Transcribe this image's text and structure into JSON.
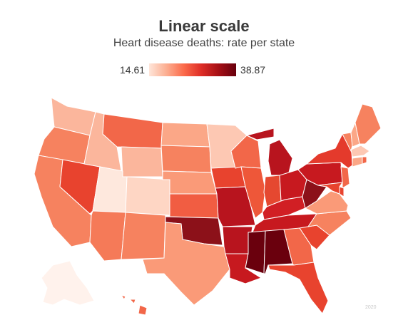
{
  "title": "Linear scale",
  "subtitle": "Heart disease deaths: rate per state",
  "legend": {
    "min": "14.61",
    "max": "38.87",
    "colors": [
      "#fee5d9",
      "#fcae91",
      "#fb6a4a",
      "#de2d26",
      "#a50f15",
      "#67000d"
    ]
  },
  "credit": "2020",
  "states": {
    "WA": "#fbb69c",
    "OR": "#f6825f",
    "CA": "#f6825f",
    "NV": "#e8432e",
    "ID": "#fbb69c",
    "MT": "#f26749",
    "WY": "#fbb69c",
    "UT": "#fee8dd",
    "CO": "#fed6c4",
    "AZ": "#f57a58",
    "NM": "#f6825f",
    "TX": "#fa9a78",
    "ND": "#fba787",
    "SD": "#f6825f",
    "NE": "#fa9a78",
    "KS": "#f15d42",
    "OK": "#8c1119",
    "MN": "#fdc8b3",
    "IA": "#e8432e",
    "MO": "#b8141e",
    "AR": "#b8141e",
    "LA": "#c7191f",
    "WI": "#f26749",
    "IL": "#ee5739",
    "IN": "#e54830",
    "MI": "#b8141e",
    "OH": "#c7191f",
    "KY": "#d11f24",
    "TN": "#c7191f",
    "MS": "#6a000d",
    "AL": "#6a000d",
    "GA": "#f26749",
    "FL": "#e8432e",
    "SC": "#e8432e",
    "NC": "#f6825f",
    "VA": "#fa9a78",
    "WV": "#8c1119",
    "PA": "#c7191f",
    "NY": "#e43a2c",
    "NJ": "#f26749",
    "DE": "#e8432e",
    "MD": "#e8432e",
    "ME": "#f6825f",
    "VT": "#f6825f",
    "NH": "#fba787",
    "MA": "#fdc8b3",
    "CT": "#fba787",
    "RI": "#f26749",
    "AK": "#fff2ec",
    "HI": "#f26749"
  }
}
